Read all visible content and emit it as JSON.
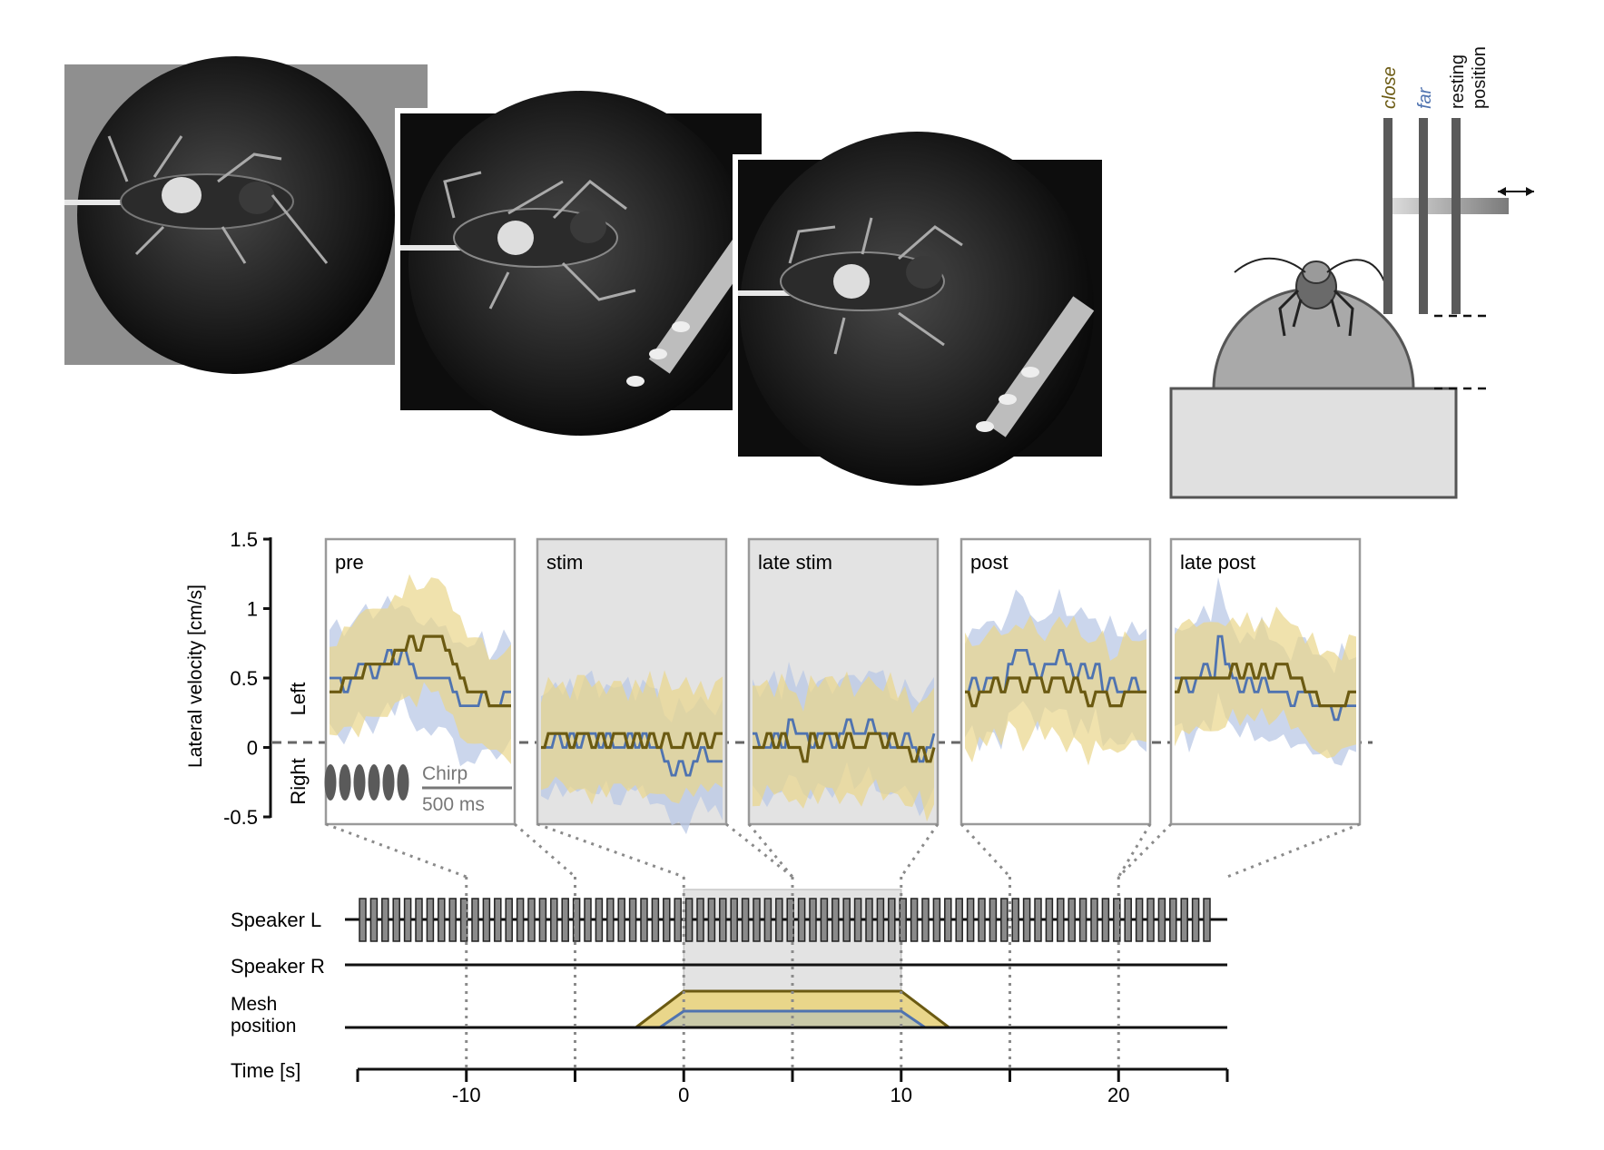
{
  "colors": {
    "close": "#6b5a12",
    "close_band": "#e9d68a",
    "far": "#4f73b0",
    "far_band": "#b9c8e6",
    "stim_shade": "#e3e3e3",
    "frame": "#9a9a9a",
    "bar_dark": "#5a5a5a"
  },
  "photos": [
    {
      "name": "cricket-frame-1"
    },
    {
      "name": "cricket-frame-2"
    },
    {
      "name": "cricket-frame-3"
    }
  ],
  "schematic": {
    "label_close": "close",
    "label_far": "far",
    "label_resting": "resting",
    "label_position": "position",
    "arrow_icon": "double-arrow-icon"
  },
  "chart_data": {
    "type": "line",
    "ylabel": "Lateral velocity [cm/s]",
    "ylim": [
      -0.5,
      1.5
    ],
    "yticks": [
      "1.5",
      "1",
      "0.5",
      "0",
      "-0.5"
    ],
    "side_left": "Left",
    "side_right": "Right",
    "panels": [
      {
        "label": "pre",
        "shaded": false,
        "series": [
          {
            "values": [
              0.5,
              0.5,
              0.4,
              0.5,
              0.6,
              0.6,
              0.5,
              0.6,
              0.7,
              0.6,
              0.7,
              0.6,
              0.5,
              0.5,
              0.5,
              0.5,
              0.5,
              0.4,
              0.3,
              0.3,
              0.3,
              0.4,
              0.3,
              0.3,
              0.4,
              0.4
            ]
          },
          {
            "values": [
              0.4,
              0.4,
              0.5,
              0.5,
              0.5,
              0.6,
              0.6,
              0.6,
              0.6,
              0.7,
              0.7,
              0.8,
              0.7,
              0.8,
              0.8,
              0.8,
              0.7,
              0.6,
              0.5,
              0.4,
              0.4,
              0.4,
              0.3,
              0.3,
              0.3,
              0.3
            ]
          }
        ]
      },
      {
        "label": "stim",
        "shaded": true,
        "series": [
          {
            "values": [
              0.0,
              0.0,
              0.1,
              0.0,
              0.1,
              0.0,
              0.1,
              0.1,
              0.0,
              0.1,
              0.0,
              0.0,
              0.1,
              0.0,
              0.1,
              0.0,
              0.0,
              -0.1,
              -0.2,
              -0.1,
              -0.2,
              -0.1,
              0.0,
              -0.1,
              -0.1,
              -0.1
            ]
          },
          {
            "values": [
              0.0,
              0.1,
              0.1,
              0.1,
              0.0,
              0.1,
              0.1,
              0.0,
              0.1,
              0.0,
              0.1,
              0.1,
              0.0,
              0.1,
              0.0,
              0.1,
              0.0,
              0.1,
              0.0,
              0.0,
              0.1,
              0.0,
              0.1,
              0.0,
              0.1,
              0.1
            ]
          }
        ]
      },
      {
        "label": "late stim",
        "shaded": true,
        "series": [
          {
            "values": [
              0.1,
              0.0,
              0.0,
              0.1,
              0.0,
              0.2,
              0.1,
              0.1,
              0.0,
              0.1,
              0.1,
              0.0,
              0.1,
              0.2,
              0.1,
              0.1,
              0.2,
              0.1,
              0.1,
              0.0,
              0.0,
              0.1,
              0.0,
              -0.1,
              0.0,
              0.1
            ]
          },
          {
            "values": [
              0.0,
              0.0,
              0.1,
              0.0,
              0.1,
              0.0,
              0.0,
              -0.1,
              0.1,
              0.0,
              0.1,
              0.1,
              0.0,
              0.1,
              0.0,
              0.0,
              0.1,
              0.1,
              0.0,
              0.1,
              0.0,
              0.0,
              -0.1,
              0.0,
              -0.1,
              0.0
            ]
          }
        ]
      },
      {
        "label": "post",
        "shaded": false,
        "series": [
          {
            "values": [
              0.4,
              0.5,
              0.4,
              0.5,
              0.5,
              0.4,
              0.6,
              0.7,
              0.7,
              0.6,
              0.5,
              0.6,
              0.6,
              0.7,
              0.6,
              0.5,
              0.6,
              0.5,
              0.6,
              0.4,
              0.5,
              0.4,
              0.4,
              0.5,
              0.4,
              0.4
            ]
          },
          {
            "values": [
              0.4,
              0.3,
              0.4,
              0.4,
              0.5,
              0.4,
              0.5,
              0.5,
              0.4,
              0.5,
              0.5,
              0.4,
              0.5,
              0.5,
              0.4,
              0.5,
              0.4,
              0.3,
              0.4,
              0.4,
              0.3,
              0.3,
              0.4,
              0.4,
              0.4,
              0.4
            ]
          }
        ]
      },
      {
        "label": "late post",
        "shaded": false,
        "series": [
          {
            "values": [
              0.5,
              0.5,
              0.4,
              0.5,
              0.6,
              0.5,
              0.8,
              0.6,
              0.5,
              0.4,
              0.5,
              0.4,
              0.5,
              0.4,
              0.4,
              0.4,
              0.3,
              0.4,
              0.4,
              0.3,
              0.3,
              0.3,
              0.2,
              0.3,
              0.3,
              0.3
            ]
          },
          {
            "values": [
              0.4,
              0.5,
              0.5,
              0.5,
              0.5,
              0.5,
              0.5,
              0.5,
              0.6,
              0.5,
              0.6,
              0.5,
              0.6,
              0.5,
              0.6,
              0.6,
              0.5,
              0.5,
              0.4,
              0.4,
              0.3,
              0.3,
              0.3,
              0.3,
              0.4,
              0.4
            ]
          }
        ]
      }
    ],
    "chirp_label": "Chirp",
    "scale_label": "500 ms"
  },
  "timeline": {
    "speaker_l": "Speaker L",
    "speaker_r": "Speaker R",
    "mesh_line1": "Mesh",
    "mesh_line2": "position",
    "time_label": "Time [s]",
    "tick_labels": [
      "-10",
      "0",
      "10",
      "20"
    ],
    "xlim": [
      -15,
      25
    ],
    "stim_window": [
      0,
      10
    ],
    "close_ramp": [
      -2.2,
      0,
      10,
      12.2
    ],
    "far_ramp": [
      -1.1,
      0,
      10,
      11.1
    ]
  }
}
